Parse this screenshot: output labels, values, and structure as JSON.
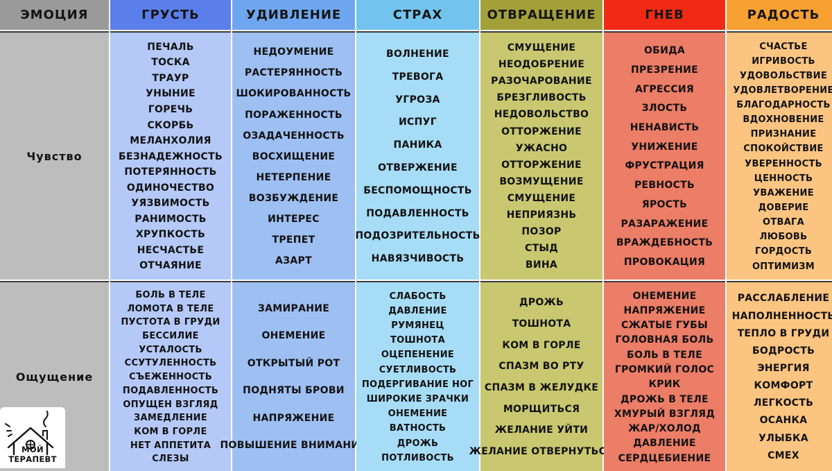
{
  "header": {
    "emotion_label": "Эмоция",
    "columns": [
      {
        "key": "sadness",
        "label": "Грусть",
        "color": "#5b7fea"
      },
      {
        "key": "surprise",
        "label": "Удивление",
        "color": "#6ea7ef"
      },
      {
        "key": "fear",
        "label": "Страх",
        "color": "#72c4ee"
      },
      {
        "key": "disgust",
        "label": "Отвращение",
        "color": "#a3a03a"
      },
      {
        "key": "anger",
        "label": "Гнев",
        "color": "#f02a14"
      },
      {
        "key": "joy",
        "label": "Радость",
        "color": "#f7a133"
      }
    ],
    "emotion_header_color": "#9a9a9a"
  },
  "rows": [
    {
      "label": "Чувство",
      "cells": [
        {
          "color": "#b4c9f7",
          "items": [
            "Печаль",
            "Тоска",
            "Траур",
            "Уныние",
            "Горечь",
            "Скорбь",
            "Меланхолия",
            "Безнадежность",
            "Потерянность",
            "Одиночество",
            "Уязвимость",
            "Ранимость",
            "Хрупкость",
            "Несчастье",
            "Отчаяние"
          ]
        },
        {
          "color": "#9ebff2",
          "items": [
            "Недоумение",
            "Растерянность",
            "Шокированность",
            "Пораженность",
            "Озадаченность",
            "Восхищение",
            "Нетерпение",
            "Возбуждение",
            "Интерес",
            "Трепет",
            "Азарт"
          ]
        },
        {
          "color": "#a6dcf6",
          "items": [
            "Волнение",
            "Тревога",
            "Угроза",
            "Испуг",
            "Паника",
            "Отвержение",
            "Беспомощность",
            "Подавленность",
            "Подозрительность",
            "Навязчивость"
          ]
        },
        {
          "color": "#c9c770",
          "items": [
            "Смущение",
            "Неодобрение",
            "Разочарование",
            "Брезгливость",
            "Недовольство",
            "Отторжение",
            "Ужасно",
            "Отторжение",
            "Возмущение",
            "Смущение",
            "Неприязнь",
            "Позор",
            "Стыд",
            "Вина"
          ]
        },
        {
          "color": "#ec7d66",
          "items": [
            "Обида",
            "Презрение",
            "Агрессия",
            "Злость",
            "Ненависть",
            "Унижение",
            "Фрустрация",
            "Ревность",
            "Ярость",
            "Разаражение",
            "Враждебность",
            "Провокация"
          ]
        },
        {
          "color": "#fbc481",
          "items": [
            "Счастье",
            "Игривость",
            "Удовольствие",
            "Удовлетворение",
            "Благодарность",
            "Вдохновение",
            "Признание",
            "Спокойствие",
            "Уверенность",
            "Ценность",
            "Уважение",
            "Доверие",
            "Отвага",
            "Любовь",
            "Гордость",
            "Оптимизм"
          ]
        }
      ]
    },
    {
      "label": "Ощущение",
      "cells": [
        {
          "color": "#b4c9f7",
          "items": [
            "Боль в теле",
            "Ломота в теле",
            "Пустота в груди",
            "Бессилие",
            "Усталость",
            "Ссутуленность",
            "Съеженность",
            "Подавленность",
            "Опущен взгляд",
            "Замедление",
            "Ком в горле",
            "Нет аппетита",
            "Слезы"
          ]
        },
        {
          "color": "#9ebff2",
          "items": [
            "Замирание",
            "Онемение",
            "Открытый рот",
            "Подняты брови",
            "Напряжение",
            "Повышение внимания"
          ]
        },
        {
          "color": "#a6dcf6",
          "items": [
            "Слабость",
            "Давление",
            "Румянец",
            "Тошнота",
            "Оцепенение",
            "Суетливость",
            "Подергивание ног",
            "Широкие зрачки",
            "Онемение",
            "Ватность",
            "Дрожь",
            "Потливость"
          ]
        },
        {
          "color": "#c9c770",
          "items": [
            "Дрожь",
            "Тошнота",
            "Ком в горле",
            "Спазм во рту",
            "Спазм в желудке",
            "Морщиться",
            "Желание уйти",
            "Желание отвернуться"
          ]
        },
        {
          "color": "#ec7d66",
          "items": [
            "Онемение",
            "Напряжение",
            "Сжатые губы",
            "Головная боль",
            "Боль в теле",
            "Громкий голос",
            "Крик",
            "Дрожь в теле",
            "Хмурый взгляд",
            "Жар/холод",
            "Давление",
            "Сердцебиение"
          ]
        },
        {
          "color": "#fbc481",
          "items": [
            "Расслабление",
            "Наполненность",
            "Тепло в груди",
            "Бодрость",
            "Энергия",
            "Комфорт",
            "Легкость",
            "Осанка",
            "Улыбка",
            "Смех"
          ]
        }
      ]
    }
  ],
  "row_label_color": "#bdbdbd",
  "logo": {
    "text": "Мой терапевт",
    "icon": "house-heart-icon"
  }
}
